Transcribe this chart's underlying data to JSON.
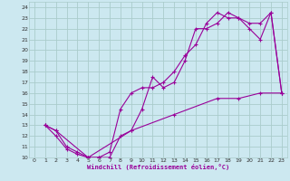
{
  "xlabel": "Windchill (Refroidissement éolien,°C)",
  "bg_color": "#cce8f0",
  "grid_color": "#aacccc",
  "line_color": "#990099",
  "xlim": [
    -0.5,
    23.5
  ],
  "ylim": [
    10,
    24.5
  ],
  "xticks": [
    0,
    1,
    2,
    3,
    4,
    5,
    6,
    7,
    8,
    9,
    10,
    11,
    12,
    13,
    14,
    15,
    16,
    17,
    18,
    19,
    20,
    21,
    22,
    23
  ],
  "yticks": [
    10,
    11,
    12,
    13,
    14,
    15,
    16,
    17,
    18,
    19,
    20,
    21,
    22,
    23,
    24
  ],
  "line1_x": [
    1,
    2,
    3,
    4,
    5,
    6,
    7,
    8,
    9,
    10,
    11,
    12,
    13,
    14,
    15,
    16,
    17,
    18,
    19,
    20,
    21,
    22,
    23
  ],
  "line1_y": [
    13,
    12.5,
    11,
    10.5,
    10,
    10,
    10,
    12,
    12.5,
    14.5,
    17.5,
    16.5,
    17,
    19,
    22,
    22,
    22.5,
    23.5,
    23,
    22,
    21,
    23.5,
    16
  ],
  "line2_x": [
    1,
    2,
    3,
    4,
    5,
    6,
    7,
    8,
    9,
    10,
    11,
    12,
    13,
    14,
    15,
    16,
    17,
    18,
    19,
    20,
    21,
    22,
    23
  ],
  "line2_y": [
    13,
    12,
    10.8,
    10.3,
    10,
    10,
    10.5,
    14.5,
    16,
    16.5,
    16.5,
    17,
    18,
    19.5,
    20.5,
    22.5,
    23.5,
    23,
    23,
    22.5,
    22.5,
    23.5,
    16
  ],
  "line3_x": [
    1,
    2,
    5,
    9,
    13,
    17,
    19,
    21,
    23
  ],
  "line3_y": [
    13,
    12.5,
    10,
    12.5,
    14,
    15.5,
    15.5,
    16,
    16
  ]
}
